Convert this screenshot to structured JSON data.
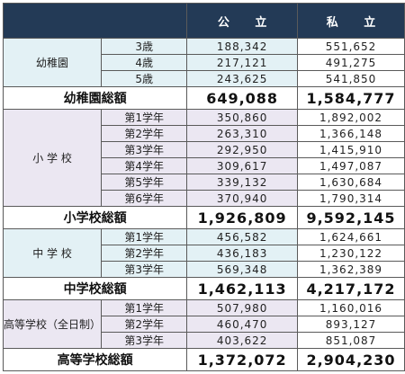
{
  "header": {
    "public": "公 立",
    "private": "私 立"
  },
  "sections": [
    {
      "label": "幼稚園",
      "rows": [
        {
          "sub": "3歳",
          "public": "188,342",
          "private": "551,652"
        },
        {
          "sub": "4歳",
          "public": "217,121",
          "private": "491,275"
        },
        {
          "sub": "5歳",
          "public": "243,625",
          "private": "541,850"
        }
      ],
      "total": {
        "label": "幼稚園総額",
        "public": "649,088",
        "private": "1,584,777"
      }
    },
    {
      "label": "小 学 校",
      "rows": [
        {
          "sub": "第1学年",
          "public": "350,860",
          "private": "1,892,002"
        },
        {
          "sub": "第2学年",
          "public": "263,310",
          "private": "1,366,148"
        },
        {
          "sub": "第3学年",
          "public": "292,950",
          "private": "1,415,910"
        },
        {
          "sub": "第4学年",
          "public": "309,617",
          "private": "1,497,087"
        },
        {
          "sub": "第5学年",
          "public": "339,132",
          "private": "1,630,684"
        },
        {
          "sub": "第6学年",
          "public": "370,940",
          "private": "1,790,314"
        }
      ],
      "total": {
        "label": "小学校総額",
        "public": "1,926,809",
        "private": "9,592,145"
      }
    },
    {
      "label": "中 学 校",
      "rows": [
        {
          "sub": "第1学年",
          "public": "456,582",
          "private": "1,624,661"
        },
        {
          "sub": "第2学年",
          "public": "436,183",
          "private": "1,230,122"
        },
        {
          "sub": "第3学年",
          "public": "569,348",
          "private": "1,362,389"
        }
      ],
      "total": {
        "label": "中学校総額",
        "public": "1,462,113",
        "private": "4,217,172"
      }
    },
    {
      "label": "高等学校（全日制）",
      "rows": [
        {
          "sub": "第1学年",
          "public": "507,980",
          "private": "1,160,016"
        },
        {
          "sub": "第2学年",
          "public": "460,470",
          "private": "893,127"
        },
        {
          "sub": "第3学年",
          "public": "403,622",
          "private": "851,087"
        }
      ],
      "total": {
        "label": "高等学校総額",
        "public": "1,372,072",
        "private": "2,904,230"
      }
    }
  ],
  "colors": {
    "header_bg": "#233a56",
    "teal_bg": "#e3f1f5",
    "purple_bg": "#ebe7f2",
    "border": "#5a5a5a"
  }
}
